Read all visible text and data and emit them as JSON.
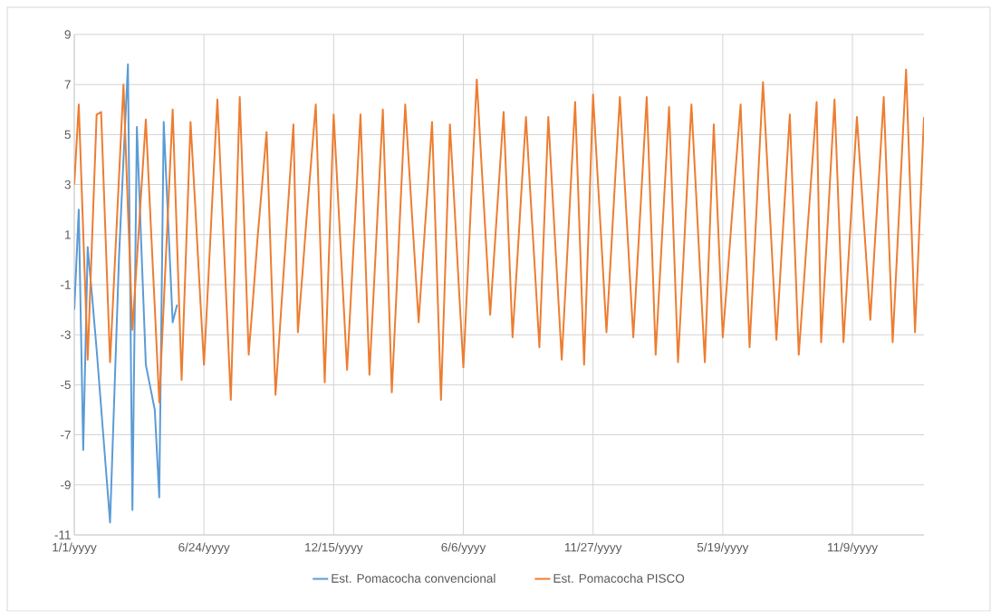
{
  "chart_data": {
    "type": "line",
    "categories": [
      "1/1/yyyy",
      null,
      null,
      null,
      null,
      null,
      null,
      null,
      null,
      null,
      null,
      null,
      null,
      null,
      null,
      null,
      null,
      null,
      null,
      null,
      null,
      null,
      null,
      null,
      null,
      null,
      null,
      null,
      null,
      "6/24/yyyy",
      null,
      null,
      null,
      null,
      null,
      null,
      null,
      null,
      null,
      null,
      null,
      null,
      null,
      null,
      null,
      null,
      null,
      null,
      null,
      null,
      null,
      null,
      null,
      null,
      null,
      null,
      null,
      null,
      "12/15/yyyy",
      null,
      null,
      null,
      null,
      null,
      null,
      null,
      null,
      null,
      null,
      null,
      null,
      null,
      null,
      null,
      null,
      null,
      null,
      null,
      null,
      null,
      null,
      null,
      null,
      null,
      null,
      null,
      null,
      "6/6/yyyy",
      null,
      null,
      null,
      null,
      null,
      null,
      null,
      null,
      null,
      null,
      null,
      null,
      null,
      null,
      null,
      null,
      null,
      null,
      null,
      null,
      null,
      null,
      null,
      null,
      null,
      null,
      null,
      null,
      "11/27/yyyy",
      null,
      null,
      null,
      null,
      null,
      null,
      null,
      null,
      null,
      null,
      null,
      null,
      null,
      null,
      null,
      null,
      null,
      null,
      null,
      null,
      null,
      null,
      null,
      null,
      null,
      null,
      null,
      null,
      "5/19/yyyy",
      null,
      null,
      null,
      null,
      null,
      null,
      null,
      null,
      null,
      null,
      null,
      null,
      null,
      null,
      null,
      null,
      null,
      null,
      null,
      null,
      null,
      null,
      null,
      null,
      null,
      null,
      null,
      null,
      "11/9/yyyy",
      null,
      null,
      null,
      null,
      null,
      null,
      null,
      null,
      null,
      null,
      null,
      null,
      null,
      null,
      null,
      null
    ],
    "series": [
      {
        "name": "Est. Pomacocha convencional",
        "color": "#5b9bd5",
        "values": [
          -2,
          2.0,
          -7.6,
          0.5,
          -1.5,
          -3.6,
          -5.9,
          -8.2,
          -10.5,
          -5.2,
          0.1,
          4.0,
          7.8,
          -10,
          5.3,
          0.5,
          -4.2,
          -5.1,
          -6,
          -9.5,
          5.5,
          1.5,
          -2.5,
          -1.8,
          null,
          null,
          null,
          null,
          null,
          null,
          null,
          null,
          null,
          null,
          null,
          null,
          null,
          null,
          null,
          null,
          null,
          null,
          null,
          null,
          null,
          null,
          null,
          null,
          null,
          null,
          null,
          null,
          null,
          null,
          null,
          null,
          null,
          null,
          null,
          null,
          null,
          null,
          null,
          null,
          null,
          null,
          null,
          null,
          null,
          null,
          null,
          null,
          null,
          null,
          null,
          null,
          null,
          null,
          null,
          null,
          null,
          null,
          null,
          null,
          null,
          null,
          null,
          null,
          null,
          null,
          null,
          null,
          null,
          null,
          null,
          null,
          null,
          null,
          null,
          null,
          null,
          null,
          null,
          null,
          null,
          null,
          null,
          null,
          null,
          null,
          null,
          null,
          null,
          null,
          null,
          null,
          null,
          null,
          null,
          null,
          null,
          null,
          null,
          null,
          null,
          null,
          null,
          null,
          null,
          null,
          null,
          null,
          null,
          null,
          null,
          null,
          null,
          null,
          null,
          null,
          null,
          null,
          null,
          null,
          null,
          null,
          null,
          null,
          null,
          null,
          null,
          null,
          null,
          null,
          null,
          null,
          null,
          null,
          null,
          null,
          null,
          null,
          null,
          null,
          null,
          null,
          null,
          null,
          null,
          null,
          null,
          null,
          null,
          null,
          null,
          null,
          null,
          null,
          null,
          null,
          null,
          null,
          null,
          null,
          null,
          null,
          null,
          null,
          null,
          null,
          null
        ]
      },
      {
        "name": "Est. Pomacocha PISCO",
        "color": "#ed7d31",
        "values": [
          3.0,
          6.2,
          1.1,
          -4.0,
          0.9,
          5.8,
          5.9,
          0.9,
          -4.1,
          -0.4,
          3.3,
          7.0,
          2.0,
          -2.8,
          0.0,
          2.8,
          5.6,
          1.8,
          -1.9,
          -5.7,
          -1.8,
          2.1,
          6.0,
          0.6,
          -4.8,
          0.4,
          5.5,
          2.3,
          -1.0,
          -4.2,
          -0.7,
          2.9,
          6.4,
          2.4,
          -1.6,
          -5.6,
          0.5,
          6.5,
          1.4,
          -3.8,
          -1.5,
          0.9,
          3.0,
          5.1,
          -0.2,
          -5.4,
          -2.7,
          0.0,
          2.7,
          5.4,
          -2.9,
          -0.6,
          1.8,
          4.0,
          6.2,
          0.7,
          -4.9,
          0.5,
          5.8,
          2.4,
          -1.0,
          -4.4,
          -1.0,
          2.4,
          5.8,
          0.6,
          -4.6,
          -1.1,
          2.5,
          6.0,
          0.4,
          -5.3,
          -1.5,
          2.4,
          6.2,
          3.3,
          0.4,
          -2.5,
          0.2,
          2.8,
          5.5,
          0.0,
          -5.6,
          -0.1,
          5.4,
          2.2,
          -1.1,
          -4.3,
          -0.5,
          3.4,
          7.2,
          4.0,
          0.9,
          -2.2,
          0.5,
          3.2,
          5.9,
          1.4,
          -3.1,
          -0.2,
          2.8,
          5.7,
          2.6,
          -0.4,
          -3.5,
          1.1,
          5.7,
          2.4,
          -0.8,
          -4.0,
          -0.6,
          2.9,
          6.3,
          1.1,
          -4.2,
          1.2,
          6.6,
          3.4,
          0.3,
          -2.9,
          0.2,
          3.4,
          6.5,
          3.3,
          0.1,
          -3.1,
          0.1,
          3.3,
          6.5,
          1.4,
          -3.8,
          -0.5,
          2.8,
          6.1,
          1.0,
          -4.1,
          -0.7,
          2.8,
          6.2,
          2.8,
          -0.7,
          -4.1,
          0.7,
          5.4,
          1.2,
          -3.1,
          -0.8,
          1.6,
          3.9,
          6.2,
          1.4,
          -3.5,
          0.0,
          3.6,
          7.1,
          3.7,
          0.3,
          -3.2,
          -0.2,
          2.8,
          5.8,
          1.0,
          -3.8,
          -1.3,
          1.3,
          3.8,
          6.3,
          -3.3,
          -0.1,
          3.2,
          6.4,
          1.6,
          -3.3,
          -0.3,
          2.7,
          5.7,
          3.0,
          0.3,
          -2.4,
          0.6,
          3.5,
          6.5,
          1.6,
          -3.3,
          0.3,
          4.0,
          7.6,
          2.4,
          -2.9,
          1.4,
          5.7
        ]
      }
    ],
    "ylim": [
      -11,
      9
    ],
    "yticks": [
      -11,
      -9,
      -7,
      -5,
      -3,
      -1,
      1,
      3,
      5,
      7,
      9
    ],
    "grid": true,
    "legend": "bottom",
    "marker": "none",
    "line_style": "solid"
  }
}
